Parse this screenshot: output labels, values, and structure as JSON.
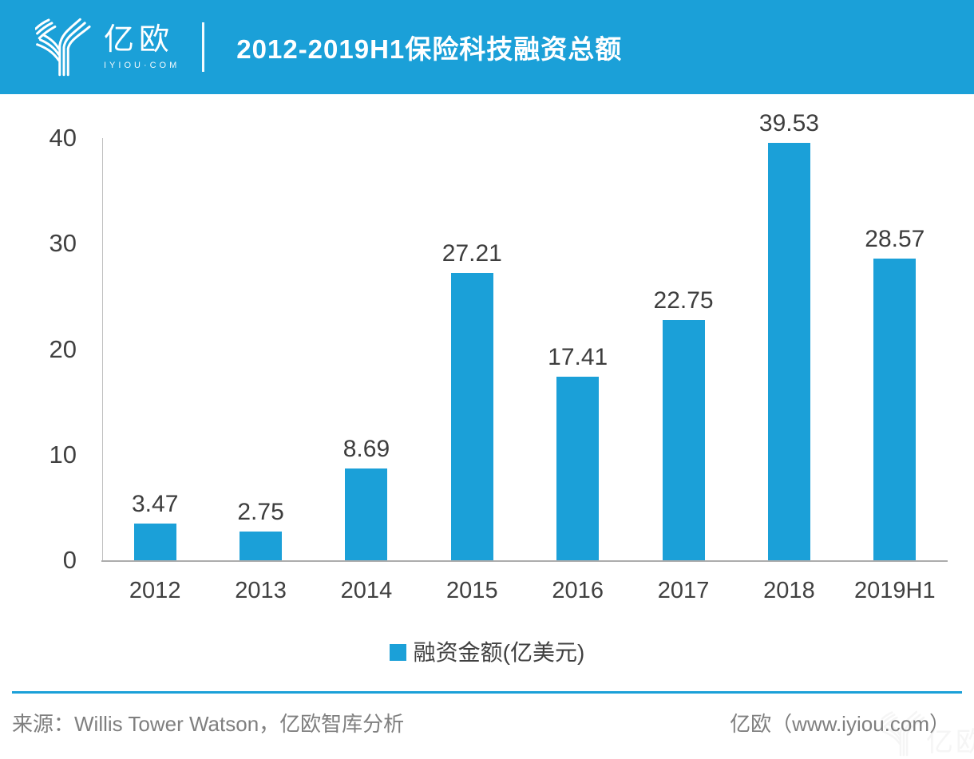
{
  "header": {
    "logo": {
      "wordmark": "亿欧",
      "subtext": "IYIOU·COM"
    },
    "title": "2012-2019H1保险科技融资总额"
  },
  "chart_data": {
    "type": "bar",
    "title": "2012-2019H1保险科技融资总额",
    "categories": [
      "2012",
      "2013",
      "2014",
      "2015",
      "2016",
      "2017",
      "2018",
      "2019H1"
    ],
    "values": [
      3.47,
      2.75,
      8.69,
      27.21,
      17.41,
      22.75,
      39.53,
      28.57
    ],
    "series_name": "融资金额(亿美元)",
    "xlabel": "",
    "ylabel": "",
    "ylim": [
      0,
      40
    ],
    "yticks": [
      0,
      10,
      20,
      30,
      40
    ],
    "grid": false,
    "legend_position": "bottom",
    "bar_color": "#1BA0D8"
  },
  "legend": {
    "label": "融资金额(亿美元)"
  },
  "footer": {
    "source": "来源：Willis Tower Watson，亿欧智库分析",
    "credit": "亿欧（www.iyiou.com）",
    "watermark_text": "亿欧"
  },
  "colors": {
    "brand_blue": "#1BA0D8",
    "text_dark": "#404040",
    "text_gray": "#7F7F7F",
    "axis_gray": "#BFBFBF",
    "background": "#FFFFFF"
  }
}
